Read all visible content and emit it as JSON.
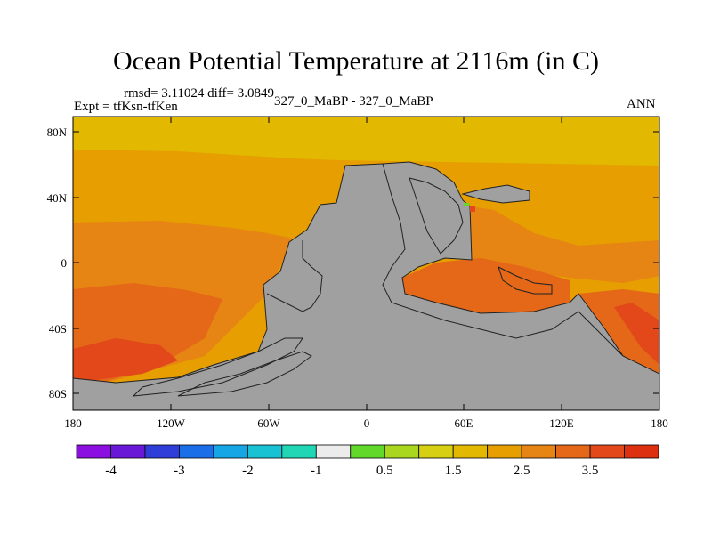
{
  "title": "Ocean Potential Temperature at 2116m (in C)",
  "stats": "rmsd= 3.11024 diff= 3.0849",
  "experiment": "Expt = tfKsn-tfKen",
  "comparison": "327_0_MaBP - 327_0_MaBP",
  "period": "ANN",
  "lat_ticks": [
    "80N",
    "40N",
    "0",
    "40S",
    "80S"
  ],
  "lon_ticks": [
    "180",
    "120W",
    "60W",
    "0",
    "60E",
    "120E",
    "180"
  ],
  "colorbar": {
    "colors": [
      "#8a0fe0",
      "#6a18d8",
      "#2f3ed8",
      "#1a6ee8",
      "#16a6e6",
      "#19c2d2",
      "#20d6b5",
      "#ececec",
      "#62d82a",
      "#a9d61e",
      "#d6cf12",
      "#e2b800",
      "#e69e00",
      "#e68414",
      "#e46818",
      "#e2481a",
      "#dc3010"
    ],
    "labels": [
      "-4",
      "-3",
      "-2",
      "-1",
      "0.5",
      "1.5",
      "2.5",
      "3.5"
    ]
  },
  "colors": {
    "land": "#a0a0a0",
    "band_high_lat": "#e2b800",
    "band_mid": "#e69e00",
    "band_warm": "#e68414",
    "band_hot": "#e46818",
    "band_hottest": "#e2481a"
  }
}
